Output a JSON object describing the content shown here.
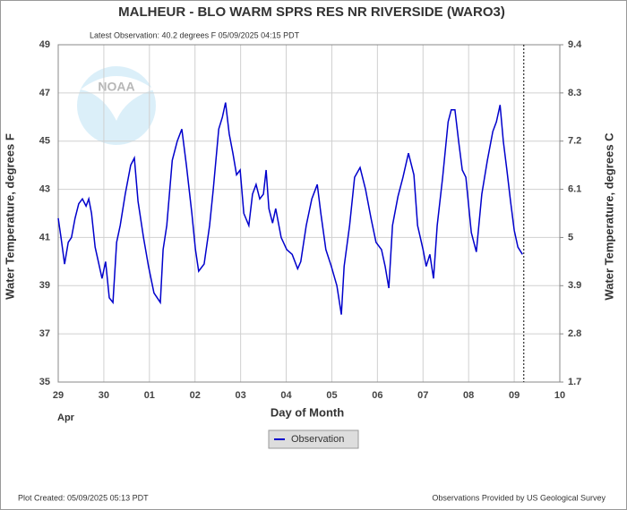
{
  "chart_data": {
    "type": "line",
    "title": "MALHEUR - BLO WARM SPRS RES NR RIVERSIDE  (WARO3)",
    "subtitle": "Latest Observation: 40.2 degrees F 05/09/2025 04:15 PDT",
    "watermark": "NOAA",
    "xlabel": "Day of Month",
    "xlabel_month": "Apr",
    "ylabel": "Water Temperature, degrees F",
    "y2label": "Water Temperature, degrees C",
    "footer_left": "Plot Created: 05/09/2025 05:13 PDT",
    "footer_right": "Observations Provided by US Geological Survey",
    "grid": true,
    "legend": "bottom",
    "xlim": [
      0,
      11
    ],
    "xticks": [
      {
        "value": 0,
        "label": "29"
      },
      {
        "value": 1,
        "label": "30"
      },
      {
        "value": 2,
        "label": "01"
      },
      {
        "value": 3,
        "label": "02"
      },
      {
        "value": 4,
        "label": "03"
      },
      {
        "value": 5,
        "label": "04"
      },
      {
        "value": 6,
        "label": "05"
      },
      {
        "value": 7,
        "label": "06"
      },
      {
        "value": 8,
        "label": "07"
      },
      {
        "value": 9,
        "label": "08"
      },
      {
        "value": 10,
        "label": "09"
      },
      {
        "value": 11,
        "label": "10"
      }
    ],
    "ylim": [
      35,
      49
    ],
    "yticks": [
      35,
      37,
      39,
      41,
      43,
      45,
      47,
      49
    ],
    "y2lim": [
      1.7,
      9.4
    ],
    "y2ticks": [
      1.7,
      2.8,
      3.9,
      5,
      6.1,
      7.2,
      8.3,
      9.4
    ],
    "now_line_x": 10.21,
    "series": [
      {
        "name": "Observation",
        "color": "#0000cc",
        "x": [
          0,
          0.06,
          0.14,
          0.22,
          0.29,
          0.37,
          0.45,
          0.53,
          0.61,
          0.67,
          0.73,
          0.81,
          0.88,
          0.96,
          1.04,
          1.12,
          1.2,
          1.28,
          1.36,
          1.47,
          1.59,
          1.67,
          1.75,
          1.87,
          1.98,
          2.1,
          2.24,
          2.3,
          2.38,
          2.5,
          2.61,
          2.71,
          2.81,
          2.93,
          3.01,
          3.08,
          3.2,
          3.32,
          3.4,
          3.52,
          3.6,
          3.67,
          3.75,
          3.83,
          3.91,
          3.99,
          4.07,
          4.18,
          4.26,
          4.34,
          4.42,
          4.5,
          4.56,
          4.62,
          4.7,
          4.77,
          4.89,
          5.01,
          5.13,
          5.25,
          5.32,
          5.44,
          5.56,
          5.68,
          5.76,
          5.87,
          5.99,
          6.11,
          6.21,
          6.27,
          6.39,
          6.5,
          6.62,
          6.74,
          6.86,
          6.97,
          7.09,
          7.17,
          7.25,
          7.33,
          7.45,
          7.56,
          7.68,
          7.8,
          7.88,
          8.0,
          8.07,
          8.15,
          8.23,
          8.31,
          8.43,
          8.55,
          8.62,
          8.7,
          8.78,
          8.86,
          8.94,
          9.06,
          9.17,
          9.29,
          9.41,
          9.53,
          9.61,
          9.69,
          9.76,
          9.84,
          9.92,
          10.0,
          10.08,
          10.18
        ],
        "values": [
          41.8,
          41.0,
          39.9,
          40.8,
          41.0,
          41.8,
          42.4,
          42.6,
          42.3,
          42.6,
          42.0,
          40.6,
          40.0,
          39.3,
          40.0,
          38.5,
          38.3,
          40.8,
          41.5,
          42.8,
          44.0,
          44.3,
          42.5,
          41.0,
          39.8,
          38.7,
          38.3,
          40.5,
          41.5,
          44.2,
          45.0,
          45.5,
          44.0,
          42.0,
          40.5,
          39.6,
          39.9,
          41.5,
          43.0,
          45.5,
          46.0,
          46.6,
          45.3,
          44.5,
          43.6,
          43.8,
          42.0,
          41.5,
          42.8,
          43.2,
          42.6,
          42.8,
          43.8,
          42.2,
          41.6,
          42.2,
          41.0,
          40.5,
          40.3,
          39.7,
          40.0,
          41.5,
          42.6,
          43.2,
          42.0,
          40.5,
          39.8,
          39.0,
          37.8,
          39.8,
          41.5,
          43.5,
          43.9,
          43.0,
          41.8,
          40.8,
          40.5,
          39.8,
          38.9,
          41.5,
          42.7,
          43.5,
          44.5,
          43.6,
          41.5,
          40.5,
          39.8,
          40.3,
          39.3,
          41.5,
          43.5,
          45.8,
          46.3,
          46.3,
          45.0,
          43.8,
          43.5,
          41.2,
          40.4,
          42.8,
          44.2,
          45.4,
          45.8,
          46.5,
          45.0,
          43.8,
          42.5,
          41.3,
          40.6,
          40.3
        ]
      }
    ]
  }
}
